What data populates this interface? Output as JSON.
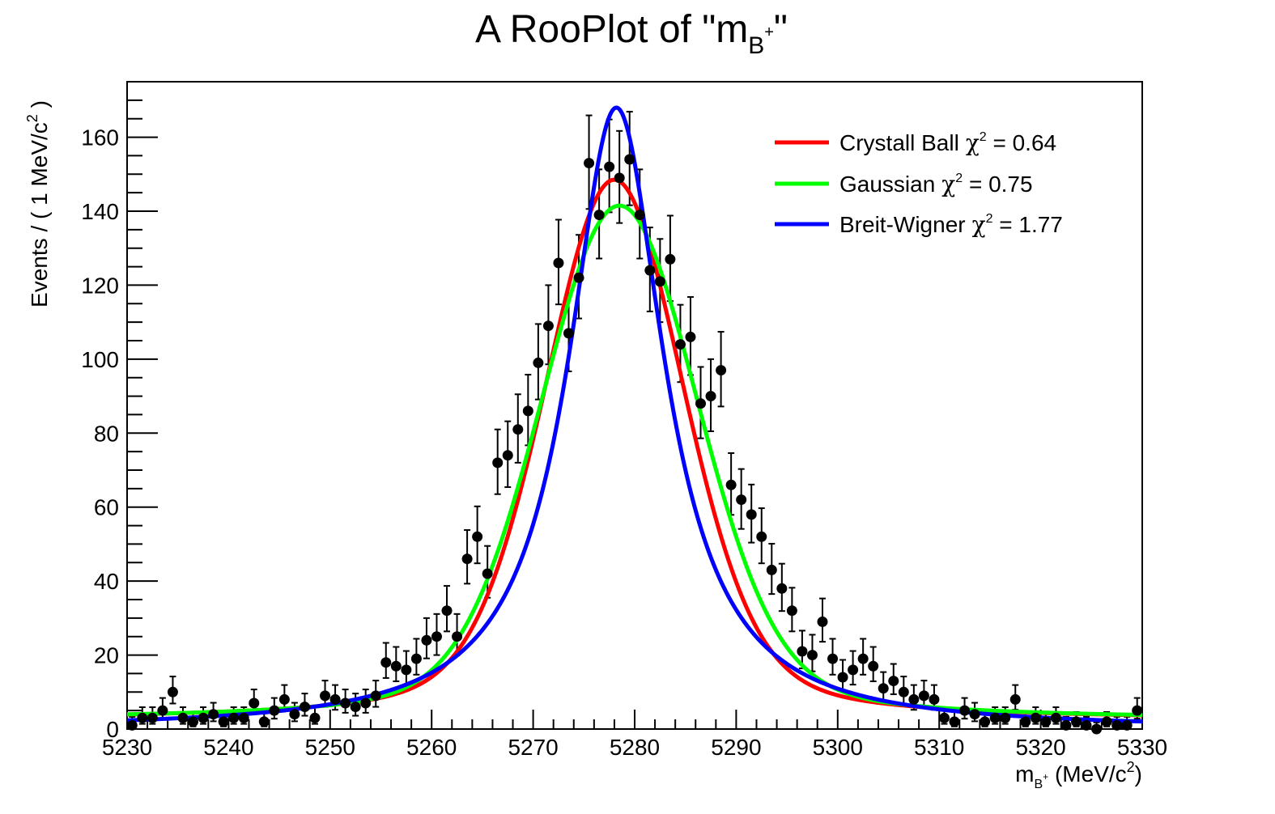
{
  "title": {
    "prefix": "A RooPlot of \"m",
    "sub": "B",
    "sup": "+",
    "suffix": "\""
  },
  "axes": {
    "ylabel_main": "Events / ( 1 MeV/c",
    "ylabel_sup": "2",
    "ylabel_end": " )",
    "xlabel_m": "m",
    "xlabel_sub": "B",
    "xlabel_sup": "+",
    "xlabel_unit_pre": " (MeV/c",
    "xlabel_unit_sup": "2",
    "xlabel_unit_end": ")"
  },
  "legend": [
    {
      "label": "Crystall Ball",
      "chi": "χ",
      "sup": "2",
      "value": " = 0.64",
      "color": "#ff0000"
    },
    {
      "label": "Gaussian",
      "chi": "χ",
      "sup": "2",
      "value": " = 0.75",
      "color": "#00ff00"
    },
    {
      "label": "Breit-Wigner",
      "chi": "χ",
      "sup": "2",
      "value": " = 1.77",
      "color": "#0000ff"
    }
  ],
  "chart_data": {
    "type": "scatter",
    "xlim": [
      5230,
      5330
    ],
    "ylim": [
      0,
      175
    ],
    "xticks": [
      5230,
      5240,
      5250,
      5260,
      5270,
      5280,
      5290,
      5300,
      5310,
      5320,
      5330
    ],
    "yticks": [
      0,
      20,
      40,
      60,
      80,
      100,
      120,
      140,
      160
    ],
    "legend_position": "top-right",
    "grid": false,
    "points": {
      "x": [
        5230.5,
        5231.5,
        5232.5,
        5233.5,
        5234.5,
        5235.5,
        5236.5,
        5237.5,
        5238.5,
        5239.5,
        5240.5,
        5241.5,
        5242.5,
        5243.5,
        5244.5,
        5245.5,
        5246.5,
        5247.5,
        5248.5,
        5249.5,
        5250.5,
        5251.5,
        5252.5,
        5253.5,
        5254.5,
        5255.5,
        5256.5,
        5257.5,
        5258.5,
        5259.5,
        5260.5,
        5261.5,
        5262.5,
        5263.5,
        5264.5,
        5265.5,
        5266.5,
        5267.5,
        5268.5,
        5269.5,
        5270.5,
        5271.5,
        5272.5,
        5273.5,
        5274.5,
        5275.5,
        5276.5,
        5277.5,
        5278.5,
        5279.5,
        5280.5,
        5281.5,
        5282.5,
        5283.5,
        5284.5,
        5285.5,
        5286.5,
        5287.5,
        5288.5,
        5289.5,
        5290.5,
        5291.5,
        5292.5,
        5293.5,
        5294.5,
        5295.5,
        5296.5,
        5297.5,
        5298.5,
        5299.5,
        5300.5,
        5301.5,
        5302.5,
        5303.5,
        5304.5,
        5305.5,
        5306.5,
        5307.5,
        5308.5,
        5309.5,
        5310.5,
        5311.5,
        5312.5,
        5313.5,
        5314.5,
        5315.5,
        5316.5,
        5317.5,
        5318.5,
        5319.5,
        5320.5,
        5321.5,
        5322.5,
        5323.5,
        5324.5,
        5325.5,
        5326.5,
        5327.5,
        5328.5,
        5329.5
      ],
      "y": [
        1,
        3,
        3,
        5,
        10,
        3,
        2,
        3,
        4,
        2,
        3,
        3,
        7,
        2,
        5,
        8,
        4,
        6,
        3,
        9,
        8,
        7,
        6,
        7,
        9,
        18,
        17,
        16,
        19,
        24,
        25,
        32,
        25,
        46,
        52,
        42,
        72,
        74,
        81,
        86,
        99,
        109,
        126,
        107,
        122,
        153,
        139,
        152,
        149,
        154,
        139,
        124,
        121,
        127,
        104,
        106,
        88,
        90,
        97,
        66,
        62,
        58,
        52,
        43,
        38,
        32,
        21,
        20,
        29,
        19,
        14,
        16,
        19,
        17,
        11,
        13,
        10,
        8,
        9,
        8,
        3,
        2,
        5,
        4,
        2,
        3,
        3,
        8,
        2,
        3,
        2,
        3,
        1,
        2,
        1,
        0,
        2,
        1,
        1,
        5
      ],
      "yerr_high": [
        2.3,
        2.9,
        2.9,
        3.4,
        4.2,
        2.9,
        2.6,
        2.9,
        3.1,
        2.6,
        2.9,
        2.9,
        3.7,
        2.6,
        3.4,
        3.9,
        3.1,
        3.6,
        2.9,
        4.1,
        3.9,
        3.7,
        3.6,
        3.7,
        4.1,
        5.3,
        5.2,
        5.1,
        5.4,
        6.0,
        6.1,
        6.7,
        6.1,
        7.8,
        8.2,
        7.5,
        9.0,
        9.2,
        9.5,
        9.8,
        10.5,
        11.0,
        11.7,
        10.9,
        11.6,
        12.9,
        12.3,
        12.8,
        12.7,
        12.9,
        12.3,
        11.6,
        11.5,
        11.8,
        10.7,
        10.8,
        9.9,
        10.0,
        10.4,
        8.6,
        8.3,
        8.1,
        7.7,
        7.1,
        6.7,
        6.2,
        5.6,
        5.5,
        6.3,
        5.4,
        4.7,
        5.1,
        5.4,
        5.2,
        4.4,
        4.6,
        4.2,
        3.9,
        4.1,
        3.9,
        2.9,
        2.6,
        3.4,
        3.1,
        2.6,
        2.9,
        2.9,
        3.9,
        2.6,
        2.9,
        2.6,
        2.9,
        2.3,
        2.6,
        2.3,
        1.8,
        2.6,
        2.3,
        2.3,
        3.4
      ],
      "yerr_low": [
        0.8,
        1.6,
        1.6,
        2.2,
        3.1,
        1.6,
        1.3,
        1.6,
        1.9,
        1.3,
        1.6,
        1.6,
        2.6,
        1.3,
        2.2,
        2.8,
        1.9,
        2.4,
        1.6,
        3.0,
        2.8,
        2.6,
        2.4,
        2.6,
        3.0,
        4.2,
        4.1,
        4.0,
        4.3,
        4.9,
        5.0,
        5.6,
        5.0,
        6.7,
        7.2,
        6.5,
        8.5,
        8.6,
        9.0,
        9.3,
        9.9,
        10.4,
        11.2,
        10.3,
        11.0,
        12.4,
        11.8,
        12.3,
        12.2,
        12.4,
        11.8,
        11.1,
        11.0,
        11.3,
        10.2,
        10.3,
        9.4,
        9.5,
        9.8,
        8.1,
        7.9,
        7.6,
        7.2,
        6.5,
        6.1,
        5.6,
        4.6,
        4.4,
        5.4,
        4.3,
        3.7,
        4.0,
        4.3,
        4.1,
        3.3,
        3.6,
        3.1,
        2.8,
        3.0,
        2.8,
        1.6,
        1.3,
        2.2,
        1.9,
        1.3,
        1.6,
        1.6,
        2.8,
        1.3,
        1.6,
        1.3,
        1.6,
        0.8,
        1.3,
        0.8,
        0,
        1.3,
        0.8,
        0.8,
        2.2
      ]
    },
    "fits": [
      {
        "name": "Crystall Ball",
        "color": "#ff0000",
        "model": "crystalball",
        "amp": 146,
        "mean": 5278,
        "sigma": 6.8,
        "bkg": 2.5
      },
      {
        "name": "Gaussian",
        "color": "#00ff00",
        "model": "voigt",
        "amp": 139,
        "mean": 5278.5,
        "sigma": 7.6,
        "bkg": 2.5
      },
      {
        "name": "Breit-Wigner",
        "color": "#0000ff",
        "model": "breitwigner",
        "amp": 168,
        "mean": 5278.2,
        "gamma": 11.5,
        "bkg": 0
      }
    ]
  }
}
